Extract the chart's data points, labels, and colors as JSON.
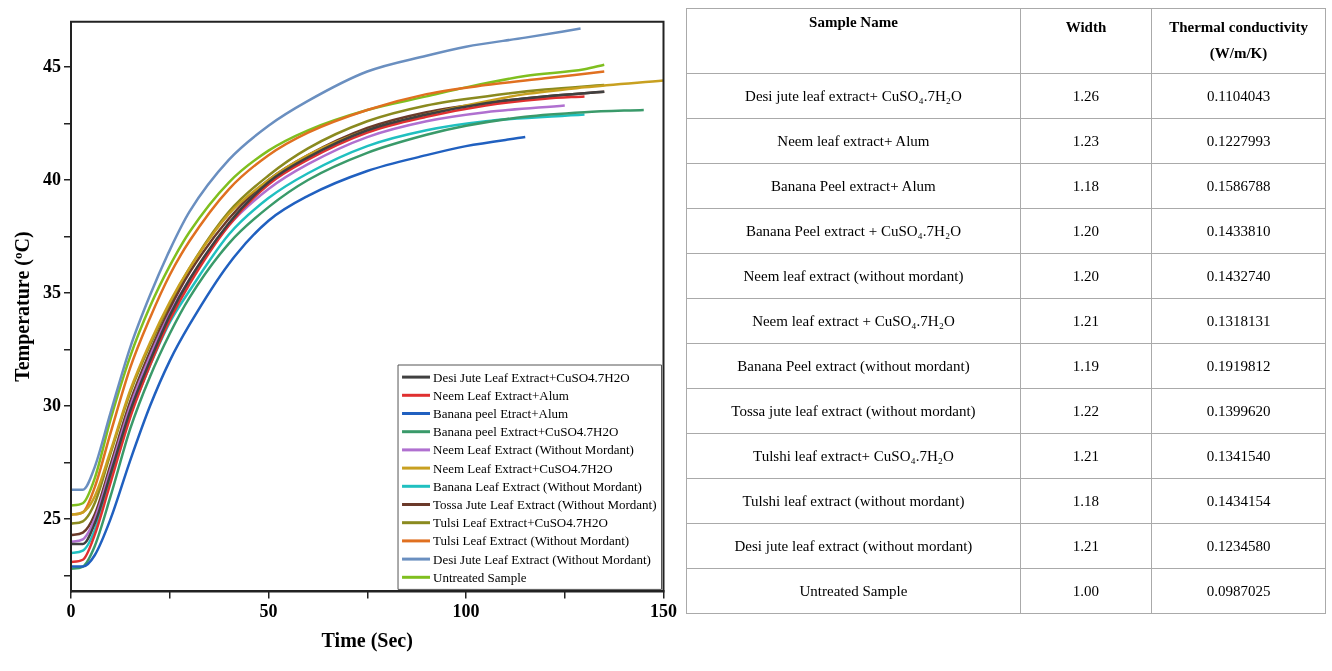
{
  "chart_data": [
    {
      "type": "line",
      "xlabel": "Time (Sec)",
      "ylabel": "Temperature (ºC)",
      "xlim": [
        0,
        150
      ],
      "ylim": [
        21.8,
        47
      ],
      "xticks": [
        0,
        {
          "value": 25,
          "label": null
        },
        50,
        {
          "value": 75,
          "label": null
        },
        100,
        {
          "value": 125,
          "label": null
        },
        150
      ],
      "yticks": [
        {
          "value": 22.5,
          "label": null
        },
        25,
        {
          "value": 27.5,
          "label": null
        },
        30,
        {
          "value": 32.5,
          "label": null
        },
        35,
        {
          "value": 37.5,
          "label": null
        },
        40,
        {
          "value": 42.5,
          "label": null
        },
        45
      ],
      "grid": false,
      "legend": "bottom right",
      "marker": "none",
      "line_style": "solid",
      "series": [
        {
          "name": "Desi Jute Leaf Extract+CuSO4.7H2O",
          "color": "#404040",
          "x": [
            0,
            3,
            6,
            10,
            15,
            20,
            25,
            30,
            40,
            50,
            60,
            75,
            90,
            105,
            120,
            135
          ],
          "values": [
            23.9,
            23.9,
            24.8,
            27,
            29.8,
            32,
            34,
            35.6,
            38.1,
            39.9,
            41,
            42.2,
            42.9,
            43.4,
            43.7,
            43.9
          ]
        },
        {
          "name": "Neem Leaf Extract+Alum",
          "color": "#e03030",
          "x": [
            0,
            3,
            6,
            10,
            15,
            20,
            25,
            30,
            40,
            50,
            60,
            75,
            90,
            105,
            120,
            130
          ],
          "values": [
            23.1,
            23.2,
            24.3,
            26.6,
            29.5,
            31.8,
            33.8,
            35.4,
            38,
            39.8,
            40.9,
            42.1,
            42.8,
            43.3,
            43.6,
            43.7
          ]
        },
        {
          "name": "Banana peel Etract+Alum",
          "color": "#2060c0",
          "x": [
            0,
            3,
            6,
            10,
            15,
            20,
            25,
            30,
            40,
            50,
            60,
            75,
            90,
            100,
            115
          ],
          "values": [
            22.9,
            22.9,
            23.4,
            25,
            27.6,
            30,
            32,
            33.6,
            36.3,
            38.2,
            39.3,
            40.4,
            41.1,
            41.5,
            41.9
          ]
        },
        {
          "name": "Banana peel Extract+CuSO4.7H2O",
          "color": "#3a9a6a",
          "x": [
            0,
            3,
            6,
            10,
            15,
            20,
            25,
            30,
            40,
            50,
            60,
            75,
            90,
            100,
            115,
            130,
            145
          ],
          "values": [
            22.8,
            22.9,
            23.8,
            26,
            29,
            31.3,
            33.2,
            34.8,
            37.2,
            38.8,
            40,
            41.2,
            42,
            42.4,
            42.8,
            43,
            43.1
          ]
        },
        {
          "name": "Neem Leaf Extract (Without Mordant)",
          "color": "#b070d0",
          "x": [
            0,
            3,
            6,
            10,
            15,
            20,
            25,
            30,
            40,
            50,
            60,
            75,
            90,
            105,
            125
          ],
          "values": [
            24,
            24.1,
            25,
            27.2,
            30,
            32.2,
            34.1,
            35.6,
            38,
            39.6,
            40.7,
            41.9,
            42.6,
            43,
            43.3
          ]
        },
        {
          "name": "Neem Leaf Extract+CuSO4.7H2O",
          "color": "#c8a020",
          "x": [
            0,
            3,
            6,
            10,
            15,
            20,
            25,
            30,
            40,
            50,
            60,
            75,
            90,
            100,
            115,
            130,
            150
          ],
          "values": [
            25.2,
            25.3,
            26,
            28,
            30.7,
            32.8,
            34.6,
            36.1,
            38.5,
            40,
            41.1,
            42.2,
            42.9,
            43.3,
            43.8,
            44.1,
            44.4
          ]
        },
        {
          "name": "Banana Leaf Extract (Without Mordant)",
          "color": "#20c0c0",
          "x": [
            0,
            3,
            6,
            10,
            15,
            20,
            25,
            30,
            40,
            50,
            60,
            75,
            90,
            105,
            130
          ],
          "values": [
            23.5,
            23.6,
            24.5,
            26.8,
            29.6,
            31.8,
            33.7,
            35.1,
            37.6,
            39.2,
            40.3,
            41.5,
            42.2,
            42.6,
            42.9
          ]
        },
        {
          "name": "Tossa Jute Leaf Extract (Without Mordant)",
          "color": "#6b3a2a",
          "x": [
            0,
            3,
            6,
            10,
            15,
            20,
            25,
            30,
            40,
            50,
            60,
            75,
            90,
            105,
            120,
            135
          ],
          "values": [
            24.3,
            24.4,
            25.2,
            27.4,
            30.2,
            32.4,
            34.3,
            35.9,
            38.3,
            40,
            41.1,
            42.3,
            43,
            43.4,
            43.7,
            43.9
          ]
        },
        {
          "name": "Tulsi Leaf Extract+CuSO4.7H2O",
          "color": "#8a8a1f",
          "x": [
            0,
            3,
            6,
            10,
            15,
            20,
            25,
            30,
            40,
            50,
            60,
            75,
            90,
            105,
            120,
            135
          ],
          "values": [
            24.8,
            24.9,
            25.7,
            27.9,
            30.6,
            32.7,
            34.5,
            36.1,
            38.6,
            40.2,
            41.4,
            42.6,
            43.3,
            43.7,
            44,
            44.2
          ]
        },
        {
          "name": "Tulsi Leaf Extract (Without Mordant)",
          "color": "#e07020",
          "x": [
            0,
            3,
            6,
            10,
            15,
            20,
            25,
            30,
            40,
            50,
            60,
            75,
            90,
            105,
            120,
            135
          ],
          "values": [
            25.2,
            25.3,
            26.4,
            28.8,
            31.7,
            33.9,
            35.8,
            37.3,
            39.6,
            41.1,
            42.1,
            43.1,
            43.8,
            44.2,
            44.5,
            44.8
          ]
        },
        {
          "name": "Desi Jute Leaf Extract (Without Mordant)",
          "color": "#6a8fc0",
          "x": [
            0,
            3,
            6,
            10,
            15,
            20,
            25,
            30,
            40,
            50,
            60,
            75,
            90,
            100,
            115,
            129
          ],
          "values": [
            26.3,
            26.3,
            27.3,
            29.7,
            32.6,
            34.9,
            36.9,
            38.6,
            40.9,
            42.4,
            43.5,
            44.8,
            45.5,
            45.9,
            46.3,
            46.7
          ]
        },
        {
          "name": "Untreated Sample",
          "color": "#7fbf1f",
          "x": [
            0,
            3,
            6,
            10,
            15,
            20,
            25,
            30,
            40,
            50,
            60,
            75,
            90,
            100,
            115,
            130,
            135
          ],
          "values": [
            25.6,
            25.7,
            26.8,
            29.4,
            32.2,
            34.4,
            36.2,
            37.7,
            39.9,
            41.3,
            42.2,
            43.1,
            43.7,
            44.1,
            44.6,
            44.9,
            45.1
          ]
        }
      ]
    },
    {
      "type": "other",
      "xlabel": "Sample Name",
      "categories": [
        "Desi jute leaf extract+ CuSO₄.7H₂O",
        "Neem leaf extract+ Alum",
        "Banana Peel extract+ Alum",
        "Banana Peel extract + CuSO₄.7H₂O",
        "Neem leaf extract (without mordant)",
        "Neem leaf extract + CuSO₄.7H₂O",
        "Banana Peel extract (without mordant)",
        "Tossa jute leaf extract (without mordant)",
        "Tulshi leaf extract+ CuSO₄.7H₂O",
        "Tulshi leaf extract (without mordant)",
        "Desi jute leaf extract (without mordant)",
        "Untreated Sample"
      ],
      "series": [
        {
          "name": "Width",
          "values": [
            1.26,
            1.23,
            1.18,
            1.2,
            1.2,
            1.21,
            1.19,
            1.22,
            1.21,
            1.18,
            1.21,
            1
          ],
          "value_labels": [
            "1.26",
            "1.23",
            "1.18",
            "1.20",
            "1.20",
            "1.21",
            "1.19",
            "1.22",
            "1.21",
            "1.18",
            "1.21",
            "1.00"
          ]
        },
        {
          "name": "Thermal conductivity (W/m/K)",
          "values": [
            0.1104043,
            0.1227993,
            0.1586788,
            0.143381,
            0.143274,
            0.1318131,
            0.1919812,
            0.139962,
            0.134154,
            0.1434154,
            0.123458,
            0.0987025
          ],
          "value_labels": [
            "0.1104043",
            "0.1227993",
            "0.1586788",
            "0.1433810",
            "0.1432740",
            "0.1318131",
            "0.1919812",
            "0.1399620",
            "0.1341540",
            "0.1434154",
            "0.1234580",
            "0.0987025"
          ]
        }
      ]
    }
  ]
}
